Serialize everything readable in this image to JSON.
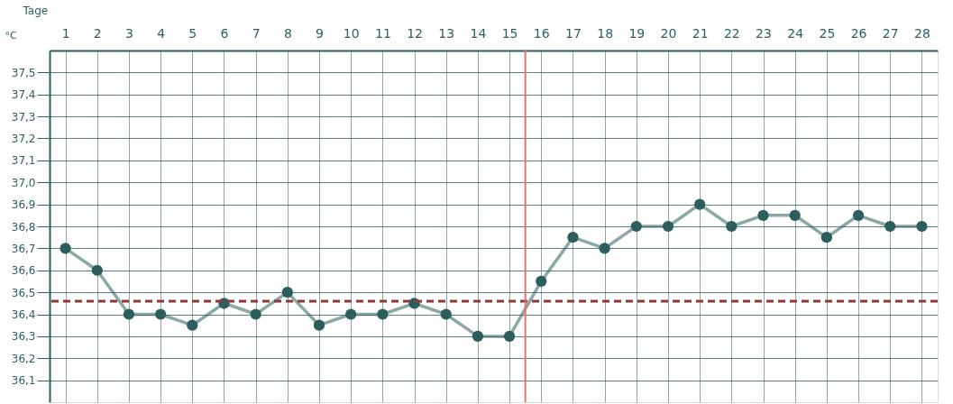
{
  "chart_data": {
    "type": "line",
    "xlabel": "Tage",
    "ylabel": "°C",
    "x": [
      1,
      2,
      3,
      4,
      5,
      6,
      7,
      8,
      9,
      10,
      11,
      12,
      13,
      14,
      15,
      16,
      17,
      18,
      19,
      20,
      21,
      22,
      23,
      24,
      25,
      26,
      27,
      28
    ],
    "series": [
      {
        "color": "#2b5e5c",
        "values": [
          36.7,
          36.6,
          36.4,
          36.4,
          36.35,
          36.45,
          36.4,
          36.5,
          36.35,
          36.4,
          36.4,
          36.45,
          36.4,
          36.3,
          36.3,
          36.55,
          36.75,
          36.7,
          36.8,
          36.8,
          36.9,
          36.8,
          36.85,
          36.85,
          36.75,
          36.85,
          36.8,
          36.8
        ]
      }
    ],
    "xlim": [
      0.5,
      28.5
    ],
    "xticks": [
      1,
      2,
      3,
      4,
      5,
      6,
      7,
      8,
      9,
      10,
      11,
      12,
      13,
      14,
      15,
      16,
      17,
      18,
      19,
      20,
      21,
      22,
      23,
      24,
      25,
      26,
      27,
      28
    ],
    "ylim": [
      36.0,
      37.6
    ],
    "yticks": [
      {
        "value": 36.1,
        "label": "36,1"
      },
      {
        "value": 36.2,
        "label": "36,2"
      },
      {
        "value": 36.3,
        "label": "36,3"
      },
      {
        "value": 36.4,
        "label": "36,4"
      },
      {
        "value": 36.5,
        "label": "36,5"
      },
      {
        "value": 36.6,
        "label": "36,6"
      },
      {
        "value": 36.7,
        "label": "36,7"
      },
      {
        "value": 36.8,
        "label": "36,8"
      },
      {
        "value": 36.9,
        "label": "36,9"
      },
      {
        "value": 37.0,
        "label": "37,0"
      },
      {
        "value": 37.1,
        "label": "37,1"
      },
      {
        "value": 37.2,
        "label": "37,2"
      },
      {
        "value": 37.3,
        "label": "37,3"
      },
      {
        "value": 37.4,
        "label": "37,4"
      },
      {
        "value": 37.5,
        "label": "37,5"
      }
    ],
    "ref_lines": [
      {
        "axis": "y",
        "value": 36.46,
        "color": "#8b3a3a",
        "line_style": "dashed"
      },
      {
        "axis": "x",
        "value": 15.5,
        "color": "#f07070",
        "line_style": "solid"
      }
    ],
    "grid": true,
    "marker": "circle",
    "line_style": "solid"
  }
}
